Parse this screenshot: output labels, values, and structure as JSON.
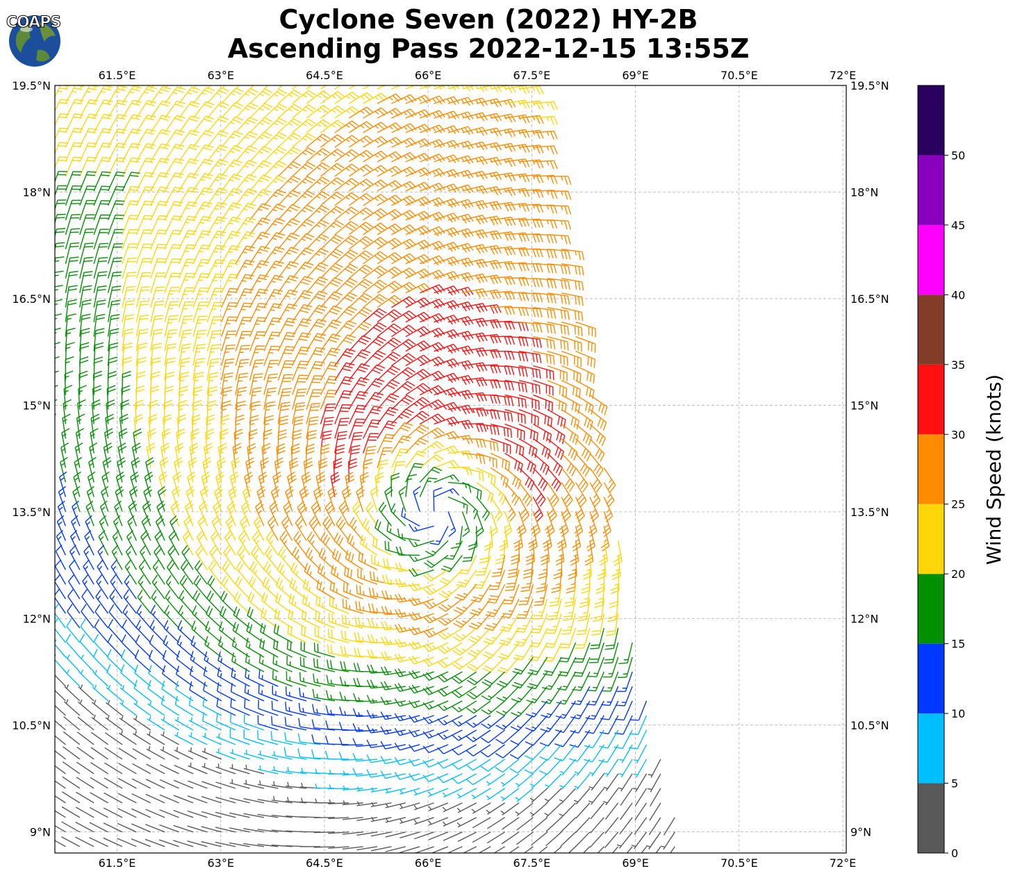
{
  "header": {
    "title_line1": "Cyclone Seven (2022) HY-2B",
    "title_line2": "Ascending Pass 2022-12-15 13:55Z",
    "logo_text": "COAPS"
  },
  "map": {
    "lon_range": [
      60.6,
      72.05
    ],
    "lat_range": [
      8.7,
      19.5
    ],
    "lon_ticks": [
      {
        "value": 61.5,
        "label": "61.5°E"
      },
      {
        "value": 63.0,
        "label": "63°E"
      },
      {
        "value": 64.5,
        "label": "64.5°E"
      },
      {
        "value": 66.0,
        "label": "66°E"
      },
      {
        "value": 67.5,
        "label": "67.5°E"
      },
      {
        "value": 69.0,
        "label": "69°E"
      },
      {
        "value": 70.5,
        "label": "70.5°E"
      },
      {
        "value": 72.0,
        "label": "72°E"
      }
    ],
    "lat_ticks": [
      {
        "value": 19.5,
        "label": "19.5°N"
      },
      {
        "value": 18.0,
        "label": "18°N"
      },
      {
        "value": 16.5,
        "label": "16.5°N"
      },
      {
        "value": 15.0,
        "label": "15°N"
      },
      {
        "value": 13.5,
        "label": "13.5°N"
      },
      {
        "value": 12.0,
        "label": "12°N"
      },
      {
        "value": 10.5,
        "label": "10.5°N"
      },
      {
        "value": 9.0,
        "label": "9°N"
      }
    ],
    "gridlines": "dashed gray",
    "cyclone_center": {
      "lon": 66.1,
      "lat": 13.5
    },
    "swath_east_edge": [
      {
        "lat": 19.5,
        "lon": 67.5
      },
      {
        "lat": 16.5,
        "lon": 68.1
      },
      {
        "lat": 13.5,
        "lon": 68.7
      },
      {
        "lat": 11.5,
        "lon": 69.0
      },
      {
        "lat": 8.7,
        "lon": 69.7
      }
    ]
  },
  "colorbar": {
    "title": "Wind Speed (knots)",
    "bins": [
      {
        "min": 0,
        "max": 5,
        "color": "#595959"
      },
      {
        "min": 5,
        "max": 10,
        "color": "#00bfff"
      },
      {
        "min": 10,
        "max": 15,
        "color": "#0038ff"
      },
      {
        "min": 15,
        "max": 20,
        "color": "#009000"
      },
      {
        "min": 20,
        "max": 25,
        "color": "#ffd60a"
      },
      {
        "min": 25,
        "max": 30,
        "color": "#ff8c00"
      },
      {
        "min": 30,
        "max": 35,
        "color": "#ff1010"
      },
      {
        "min": 35,
        "max": 40,
        "color": "#823c28"
      },
      {
        "min": 40,
        "max": 45,
        "color": "#ff00ff"
      },
      {
        "min": 45,
        "max": 50,
        "color": "#8a00bf"
      },
      {
        "min": 50,
        "max": 55,
        "color": "#2a005f"
      }
    ],
    "tick_labels": [
      "0",
      "5",
      "10",
      "15",
      "20",
      "25",
      "30",
      "35",
      "40",
      "45",
      "50"
    ]
  }
}
